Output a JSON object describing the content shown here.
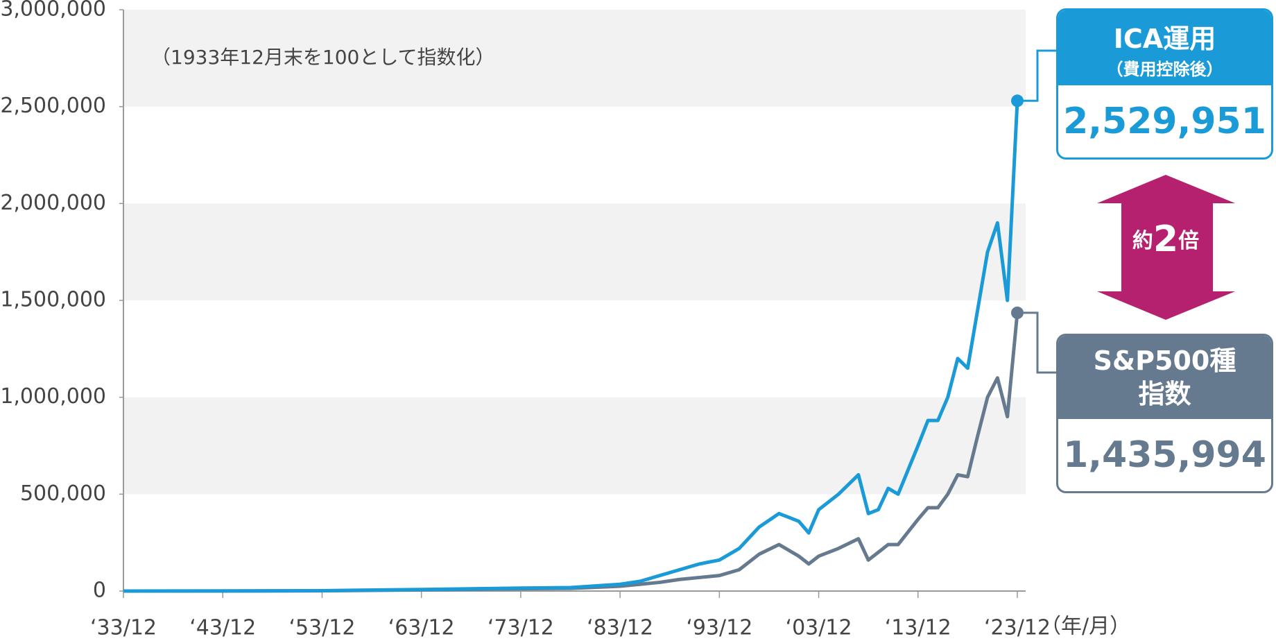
{
  "chart_data": {
    "type": "line",
    "note": "（1933年12月末を100として指数化）",
    "x_unit": "（年/月）",
    "x": [
      1933,
      1943,
      1953,
      1963,
      1973,
      1978,
      1983,
      1985,
      1987,
      1989,
      1991,
      1993,
      1995,
      1997,
      1999,
      2000,
      2001,
      2002,
      2003,
      2005,
      2007,
      2008,
      2009,
      2010,
      2011,
      2013,
      2014,
      2015,
      2016,
      2017,
      2018,
      2019,
      2020,
      2021,
      2022,
      2023
    ],
    "series": [
      {
        "name": "ICA運用",
        "subname": "（費用控除後）",
        "color": "#1a9bd7",
        "end_value_label": "2,529,951",
        "values": [
          100,
          400,
          2000,
          8000,
          15000,
          18000,
          35000,
          50000,
          80000,
          110000,
          140000,
          160000,
          220000,
          330000,
          400000,
          380000,
          360000,
          300000,
          420000,
          500000,
          600000,
          400000,
          420000,
          530000,
          500000,
          750000,
          880000,
          880000,
          1000000,
          1200000,
          1150000,
          1450000,
          1750000,
          1900000,
          1500000,
          2529951
        ]
      },
      {
        "name": "S&P500種指数",
        "color": "#667a8f",
        "end_value_label": "1,435,994",
        "values": [
          100,
          300,
          1500,
          6000,
          12000,
          14000,
          25000,
          35000,
          45000,
          60000,
          70000,
          80000,
          110000,
          190000,
          240000,
          210000,
          180000,
          140000,
          180000,
          220000,
          270000,
          160000,
          200000,
          240000,
          240000,
          370000,
          430000,
          430000,
          500000,
          600000,
          590000,
          800000,
          1000000,
          1100000,
          900000,
          1435994
        ]
      }
    ],
    "annotation": {
      "prefix": "約",
      "number": "2",
      "suffix": "倍",
      "color": "#b5216e"
    },
    "xlim": [
      1933,
      2023
    ],
    "xticks": [
      {
        "value": 1933,
        "label": "‘33/12"
      },
      {
        "value": 1943,
        "label": "‘43/12"
      },
      {
        "value": 1953,
        "label": "‘53/12"
      },
      {
        "value": 1963,
        "label": "‘63/12"
      },
      {
        "value": 1973,
        "label": "‘73/12"
      },
      {
        "value": 1983,
        "label": "‘83/12"
      },
      {
        "value": 1993,
        "label": "‘93/12"
      },
      {
        "value": 2003,
        "label": "‘03/12"
      },
      {
        "value": 2013,
        "label": "‘13/12"
      },
      {
        "value": 2023,
        "label": "‘23/12"
      }
    ],
    "ylim": [
      0,
      3000000
    ],
    "yticks": [
      0,
      {
        "value": 500000,
        "label": "500,000"
      },
      {
        "value": 1000000,
        "label": "1,000,000"
      },
      {
        "value": 1500000,
        "label": "1,500,000"
      },
      {
        "value": 2000000,
        "label": "2,000,000"
      },
      {
        "value": 2500000,
        "label": "2,500,000"
      },
      {
        "value": 3000000,
        "label": "3,000,000"
      }
    ]
  }
}
